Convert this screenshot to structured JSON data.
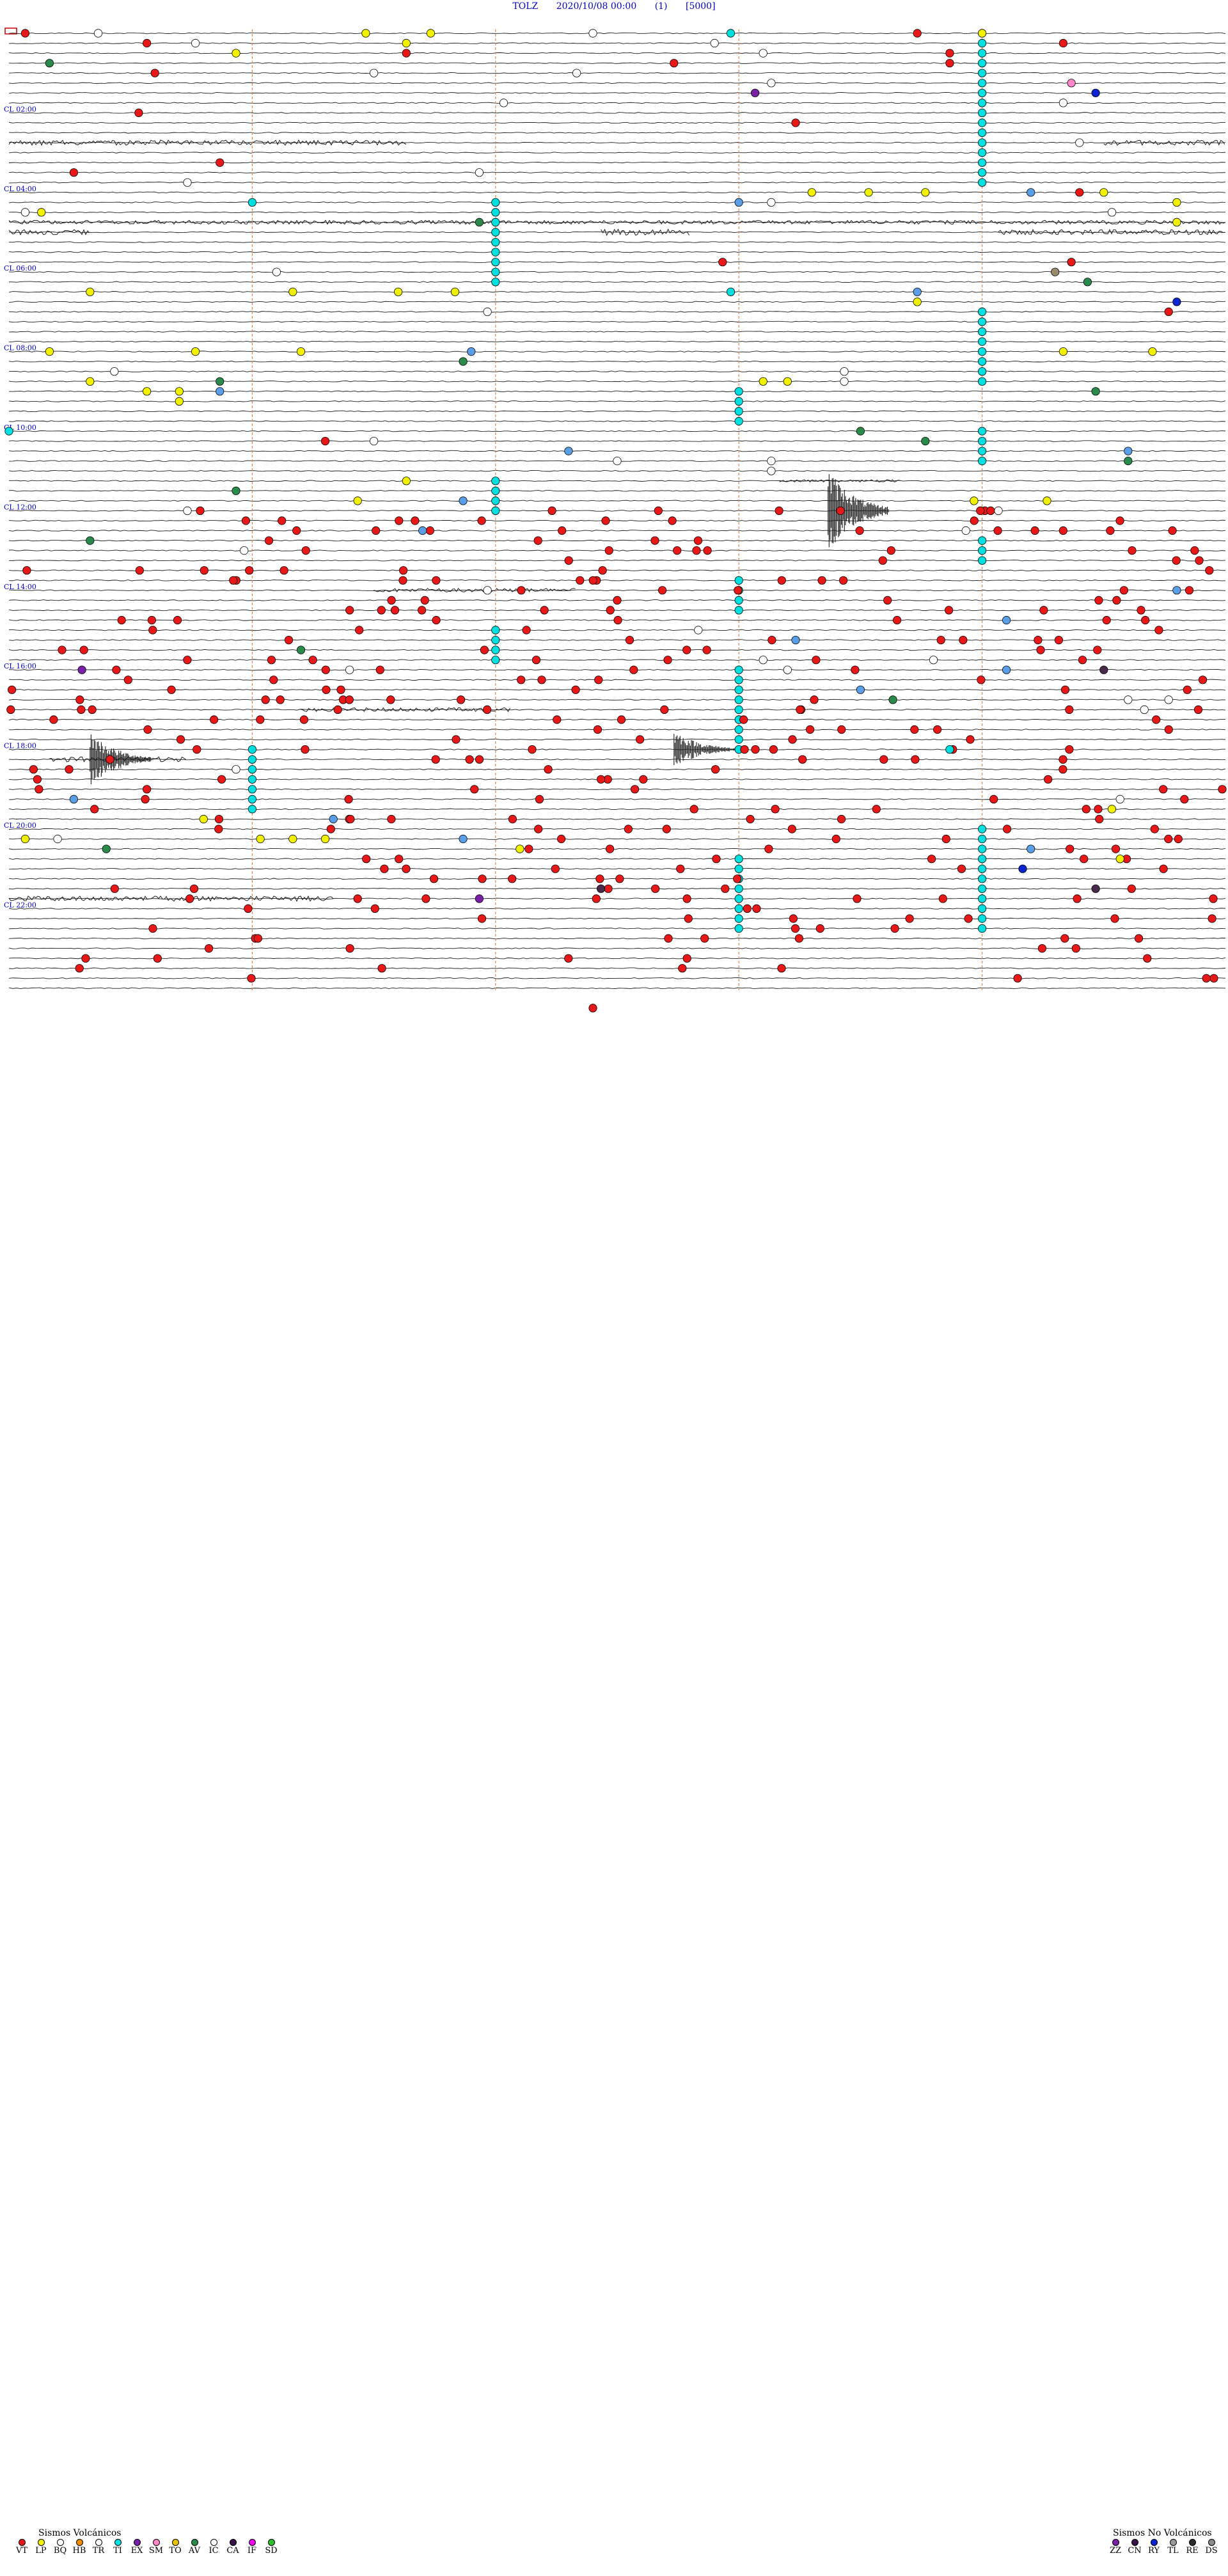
{
  "header": {
    "station": "TOLZ",
    "datetime": "2020/10/08 00:00",
    "channel": "(1)",
    "gain": "[5000]"
  },
  "chart_data": {
    "type": "scatter",
    "title": "TOLZ  2020/10/08 00:00  (1)  [5000]",
    "rows_per_hour": 4,
    "hours_shown": 24,
    "hour_labels": [
      "02:00",
      "04:00",
      "06:00",
      "08:00",
      "10:00",
      "12:00",
      "14:00",
      "16:00",
      "18:00",
      "20:00",
      "22:00"
    ],
    "hour_label_prefix": "CL",
    "x_minutes_per_row": 15,
    "vertical_markers_minutes": [
      3.0,
      6.0,
      9.0,
      12.0
    ],
    "noise_segments": [
      {
        "hour": 2.75,
        "from": 0.0,
        "to": 4.9,
        "amp": 4
      },
      {
        "hour": 2.75,
        "from": 13.5,
        "to": 15.0,
        "amp": 4
      },
      {
        "hour": 4.75,
        "from": 0.0,
        "to": 15.0,
        "amp": 3
      },
      {
        "hour": 5.0,
        "from": 0.0,
        "to": 1.0,
        "amp": 4
      },
      {
        "hour": 5.0,
        "from": 7.3,
        "to": 8.4,
        "amp": 5
      },
      {
        "hour": 5.0,
        "from": 12.2,
        "to": 15.0,
        "amp": 4
      },
      {
        "hour": 11.25,
        "from": 9.5,
        "to": 11.0,
        "amp": 2
      },
      {
        "hour": 14.0,
        "from": 4.5,
        "to": 7.0,
        "amp": 3
      },
      {
        "hour": 17.0,
        "from": 3.6,
        "to": 6.2,
        "amp": 3
      },
      {
        "hour": 18.25,
        "from": 0.5,
        "to": 2.2,
        "amp": 4
      },
      {
        "hour": 21.75,
        "from": 0.0,
        "to": 4.0,
        "amp": 4
      }
    ],
    "large_events": [
      {
        "hour": 12.0,
        "minute": 10.1,
        "amp": 45
      },
      {
        "hour": 18.25,
        "minute": 1.0,
        "amp": 30
      },
      {
        "hour": 18.0,
        "minute": 8.2,
        "amp": 20
      }
    ],
    "events": [
      {
        "hour": 0.0,
        "minute": 0.2,
        "type": "VT"
      },
      {
        "hour": 0.0,
        "minute": 1.1,
        "type": "IC"
      },
      {
        "hour": 0.0,
        "minute": 4.4,
        "type": "LP"
      },
      {
        "hour": 0.0,
        "minute": 5.2,
        "type": "LP"
      },
      {
        "hour": 0.0,
        "minute": 7.2,
        "type": "IC"
      },
      {
        "hour": 0.0,
        "minute": 8.9,
        "type": "TI"
      },
      {
        "hour": 0.0,
        "minute": 11.2,
        "type": "VT"
      },
      {
        "hour": 0.0,
        "minute": 12.0,
        "type": "LP"
      },
      {
        "hour": 0.25,
        "minute": 1.7,
        "type": "VT"
      },
      {
        "hour": 0.25,
        "minute": 2.3,
        "type": "IC"
      },
      {
        "hour": 0.25,
        "minute": 4.9,
        "type": "LP"
      },
      {
        "hour": 0.25,
        "minute": 8.7,
        "type": "IC"
      },
      {
        "hour": 0.25,
        "minute": 13.0,
        "type": "VT"
      },
      {
        "hour": 0.5,
        "minute": 2.8,
        "type": "LP"
      },
      {
        "hour": 0.5,
        "minute": 4.9,
        "type": "VT"
      },
      {
        "hour": 0.5,
        "minute": 9.3,
        "type": "IC"
      },
      {
        "hour": 0.5,
        "minute": 11.6,
        "type": "VT"
      },
      {
        "hour": 0.75,
        "minute": 0.5,
        "type": "AV"
      },
      {
        "hour": 0.75,
        "minute": 8.2,
        "type": "VT"
      },
      {
        "hour": 0.75,
        "minute": 11.6,
        "type": "VT"
      },
      {
        "hour": 1.0,
        "minute": 1.8,
        "type": "VT"
      },
      {
        "hour": 1.0,
        "minute": 4.5,
        "type": "IC"
      },
      {
        "hour": 1.0,
        "minute": 7.0,
        "type": "IC"
      },
      {
        "hour": 1.25,
        "minute": 9.4,
        "type": "IC"
      },
      {
        "hour": 1.25,
        "minute": 13.1,
        "type": "SM"
      },
      {
        "hour": 1.5,
        "minute": 9.2,
        "type": "EX"
      },
      {
        "hour": 1.5,
        "minute": 13.4,
        "type": "RY"
      },
      {
        "hour": 1.75,
        "minute": 6.1,
        "type": "IC"
      },
      {
        "hour": 1.75,
        "minute": 13.0,
        "type": "IC"
      },
      {
        "hour": 2.0,
        "minute": 1.6,
        "type": "VT"
      },
      {
        "hour": 2.25,
        "minute": 9.7,
        "type": "VT"
      },
      {
        "hour": 2.75,
        "minute": 13.2,
        "type": "IC"
      },
      {
        "hour": 3.25,
        "minute": 2.6,
        "type": "VT"
      },
      {
        "hour": 3.5,
        "minute": 0.8,
        "type": "VT"
      },
      {
        "hour": 3.5,
        "minute": 5.8,
        "type": "IC"
      },
      {
        "hour": 3.75,
        "minute": 2.2,
        "type": "IC"
      },
      {
        "hour": 4.0,
        "minute": 9.9,
        "type": "LP"
      },
      {
        "hour": 4.0,
        "minute": 10.6,
        "type": "LP"
      },
      {
        "hour": 4.0,
        "minute": 11.3,
        "type": "LP"
      },
      {
        "hour": 4.0,
        "minute": 12.6,
        "type": "HB"
      },
      {
        "hour": 4.0,
        "minute": 13.2,
        "type": "VT"
      },
      {
        "hour": 4.0,
        "minute": 13.5,
        "type": "LP"
      },
      {
        "hour": 4.25,
        "minute": 3.0,
        "type": "TI"
      },
      {
        "hour": 4.25,
        "minute": 9.0,
        "type": "HB"
      },
      {
        "hour": 4.25,
        "minute": 9.4,
        "type": "IC"
      },
      {
        "hour": 4.25,
        "minute": 14.4,
        "type": "LP"
      },
      {
        "hour": 4.5,
        "minute": 0.2,
        "type": "IC"
      },
      {
        "hour": 4.5,
        "minute": 0.4,
        "type": "LP"
      },
      {
        "hour": 4.5,
        "minute": 13.6,
        "type": "IC"
      },
      {
        "hour": 4.75,
        "minute": 5.8,
        "type": "AV"
      },
      {
        "hour": 4.75,
        "minute": 14.4,
        "type": "LP"
      },
      {
        "hour": 5.75,
        "minute": 8.8,
        "type": "VT"
      },
      {
        "hour": 5.75,
        "minute": 13.1,
        "type": "VT"
      },
      {
        "hour": 6.0,
        "minute": 3.3,
        "type": "IC"
      },
      {
        "hour": 6.0,
        "minute": 12.9,
        "type": "TO"
      },
      {
        "hour": 6.25,
        "minute": 13.3,
        "type": "AV"
      },
      {
        "hour": 6.5,
        "minute": 1.0,
        "type": "LP"
      },
      {
        "hour": 6.5,
        "minute": 3.5,
        "type": "LP"
      },
      {
        "hour": 6.5,
        "minute": 4.8,
        "type": "LP"
      },
      {
        "hour": 6.5,
        "minute": 5.5,
        "type": "LP"
      },
      {
        "hour": 6.5,
        "minute": 8.9,
        "type": "TI"
      },
      {
        "hour": 6.5,
        "minute": 11.2,
        "type": "HB"
      },
      {
        "hour": 6.75,
        "minute": 11.2,
        "type": "LP"
      },
      {
        "hour": 6.75,
        "minute": 14.4,
        "type": "RY"
      },
      {
        "hour": 7.0,
        "minute": 14.3,
        "type": "VT"
      },
      {
        "hour": 7.0,
        "minute": 5.9,
        "type": "IC"
      },
      {
        "hour": 8.0,
        "minute": 0.5,
        "type": "LP"
      },
      {
        "hour": 8.0,
        "minute": 2.3,
        "type": "LP"
      },
      {
        "hour": 8.0,
        "minute": 3.6,
        "type": "LP"
      },
      {
        "hour": 8.0,
        "minute": 5.7,
        "type": "HB"
      },
      {
        "hour": 8.0,
        "minute": 13.0,
        "type": "LP"
      },
      {
        "hour": 8.0,
        "minute": 14.1,
        "type": "LP"
      },
      {
        "hour": 8.25,
        "minute": 5.6,
        "type": "AV"
      },
      {
        "hour": 8.5,
        "minute": 1.3,
        "type": "IC"
      },
      {
        "hour": 8.5,
        "minute": 10.3,
        "type": "IC"
      },
      {
        "hour": 8.75,
        "minute": 1.0,
        "type": "LP"
      },
      {
        "hour": 8.75,
        "minute": 2.6,
        "type": "AV"
      },
      {
        "hour": 8.75,
        "minute": 9.3,
        "type": "LP"
      },
      {
        "hour": 8.75,
        "minute": 9.6,
        "type": "LP"
      },
      {
        "hour": 8.75,
        "minute": 10.3,
        "type": "IC"
      },
      {
        "hour": 9.0,
        "minute": 1.7,
        "type": "LP"
      },
      {
        "hour": 9.0,
        "minute": 2.1,
        "type": "LP"
      },
      {
        "hour": 9.0,
        "minute": 2.6,
        "type": "HB"
      },
      {
        "hour": 9.0,
        "minute": 13.4,
        "type": "AV"
      },
      {
        "hour": 9.25,
        "minute": 2.1,
        "type": "LP"
      },
      {
        "hour": 10.0,
        "minute": 0.0,
        "type": "TI"
      },
      {
        "hour": 10.0,
        "minute": 10.5,
        "type": "AV"
      },
      {
        "hour": 10.25,
        "minute": 3.9,
        "type": "VT"
      },
      {
        "hour": 10.25,
        "minute": 4.5,
        "type": "IC"
      },
      {
        "hour": 10.25,
        "minute": 11.3,
        "type": "AV"
      },
      {
        "hour": 10.5,
        "minute": 6.9,
        "type": "HB"
      },
      {
        "hour": 10.5,
        "minute": 13.8,
        "type": "HB"
      },
      {
        "hour": 10.75,
        "minute": 7.5,
        "type": "IC"
      },
      {
        "hour": 10.75,
        "minute": 9.4,
        "type": "IC"
      },
      {
        "hour": 10.75,
        "minute": 13.8,
        "type": "AV"
      },
      {
        "hour": 11.0,
        "minute": 9.4,
        "type": "IC"
      },
      {
        "hour": 11.25,
        "minute": 4.9,
        "type": "LP"
      },
      {
        "hour": 11.5,
        "minute": 2.8,
        "type": "AV"
      },
      {
        "hour": 11.75,
        "minute": 4.3,
        "type": "LP"
      },
      {
        "hour": 11.75,
        "minute": 5.6,
        "type": "HB"
      },
      {
        "hour": 11.75,
        "minute": 11.9,
        "type": "LP"
      },
      {
        "hour": 11.75,
        "minute": 12.8,
        "type": "LP"
      },
      {
        "hour": 12.0,
        "minute": 2.2,
        "type": "IC"
      },
      {
        "hour": 12.0,
        "minute": 12.2,
        "type": "IC"
      },
      {
        "hour": 12.5,
        "minute": 5.1,
        "type": "HB"
      },
      {
        "hour": 12.5,
        "minute": 11.8,
        "type": "IC"
      },
      {
        "hour": 12.75,
        "minute": 1.0,
        "type": "AV"
      },
      {
        "hour": 13.0,
        "minute": 2.9,
        "type": "IC"
      },
      {
        "hour": 14.0,
        "minute": 5.9,
        "type": "IC"
      },
      {
        "hour": 14.0,
        "minute": 14.4,
        "type": "HB"
      },
      {
        "hour": 14.75,
        "minute": 12.3,
        "type": "HB"
      },
      {
        "hour": 15.0,
        "minute": 8.5,
        "type": "IC"
      },
      {
        "hour": 15.25,
        "minute": 9.7,
        "type": "HB"
      },
      {
        "hour": 15.5,
        "minute": 3.6,
        "type": "AV"
      },
      {
        "hour": 15.75,
        "minute": 9.3,
        "type": "IC"
      },
      {
        "hour": 15.75,
        "minute": 11.4,
        "type": "IC"
      },
      {
        "hour": 16.0,
        "minute": 0.9,
        "type": "EX"
      },
      {
        "hour": 16.0,
        "minute": 4.2,
        "type": "IC"
      },
      {
        "hour": 16.0,
        "minute": 9.6,
        "type": "IC"
      },
      {
        "hour": 16.0,
        "minute": 12.3,
        "type": "HB"
      },
      {
        "hour": 16.0,
        "minute": 13.5,
        "type": "CA"
      },
      {
        "hour": 16.5,
        "minute": 10.5,
        "type": "HB"
      },
      {
        "hour": 16.75,
        "minute": 10.9,
        "type": "AV"
      },
      {
        "hour": 16.75,
        "minute": 13.8,
        "type": "IC"
      },
      {
        "hour": 16.75,
        "minute": 14.3,
        "type": "IC"
      },
      {
        "hour": 17.0,
        "minute": 14.0,
        "type": "IC"
      },
      {
        "hour": 18.0,
        "minute": 11.6,
        "type": "TI"
      },
      {
        "hour": 18.5,
        "minute": 2.8,
        "type": "IC"
      },
      {
        "hour": 19.25,
        "minute": 0.8,
        "type": "HB"
      },
      {
        "hour": 19.25,
        "minute": 13.7,
        "type": "IC"
      },
      {
        "hour": 19.5,
        "minute": 13.6,
        "type": "LP"
      },
      {
        "hour": 19.75,
        "minute": 2.4,
        "type": "LP"
      },
      {
        "hour": 19.75,
        "minute": 4.0,
        "type": "HB"
      },
      {
        "hour": 20.25,
        "minute": 0.2,
        "type": "LP"
      },
      {
        "hour": 20.25,
        "minute": 0.6,
        "type": "IC"
      },
      {
        "hour": 20.25,
        "minute": 3.1,
        "type": "LP"
      },
      {
        "hour": 20.25,
        "minute": 3.5,
        "type": "LP"
      },
      {
        "hour": 20.25,
        "minute": 3.9,
        "type": "LP"
      },
      {
        "hour": 20.25,
        "minute": 5.6,
        "type": "HB"
      },
      {
        "hour": 20.5,
        "minute": 6.3,
        "type": "LP"
      },
      {
        "hour": 20.5,
        "minute": 1.2,
        "type": "AV"
      },
      {
        "hour": 20.5,
        "minute": 12.6,
        "type": "HB"
      },
      {
        "hour": 20.75,
        "minute": 13.7,
        "type": "LP"
      },
      {
        "hour": 21.0,
        "minute": 12.5,
        "type": "RY"
      },
      {
        "hour": 21.5,
        "minute": 7.3,
        "type": "CA"
      },
      {
        "hour": 21.5,
        "minute": 13.4,
        "type": "CA"
      },
      {
        "hour": 21.75,
        "minute": 5.8,
        "type": "EX"
      },
      {
        "hour": 24.5,
        "minute": 7.2,
        "type": "VT"
      }
    ],
    "long_event_columns": [
      {
        "hour_start": 0.0,
        "hour_end": 3.75,
        "minute": 12.0,
        "type": "TI"
      },
      {
        "hour_start": 4.25,
        "hour_end": 6.25,
        "minute": 6.0,
        "type": "TI"
      },
      {
        "hour_start": 7.0,
        "hour_end": 8.75,
        "minute": 12.0,
        "type": "TI"
      },
      {
        "hour_start": 9.0,
        "hour_end": 9.75,
        "minute": 9.0,
        "type": "TI"
      },
      {
        "hour_start": 10.0,
        "hour_end": 10.75,
        "minute": 12.0,
        "type": "TI"
      },
      {
        "hour_start": 11.25,
        "hour_end": 12.0,
        "minute": 6.0,
        "type": "TI"
      },
      {
        "hour_start": 12.75,
        "hour_end": 13.25,
        "minute": 12.0,
        "type": "TI"
      },
      {
        "hour_start": 13.75,
        "hour_end": 14.5,
        "minute": 9.0,
        "type": "TI"
      },
      {
        "hour_start": 15.0,
        "hour_end": 15.75,
        "minute": 6.0,
        "type": "TI"
      },
      {
        "hour_start": 16.0,
        "hour_end": 18.0,
        "minute": 9.0,
        "type": "TI"
      },
      {
        "hour_start": 18.0,
        "hour_end": 19.5,
        "minute": 3.0,
        "type": "TI"
      },
      {
        "hour_start": 20.0,
        "hour_end": 22.5,
        "minute": 12.0,
        "type": "TI"
      },
      {
        "hour_start": 20.75,
        "hour_end": 22.5,
        "minute": 9.0,
        "type": "TI"
      }
    ],
    "dense_vt_hours": [
      12.0,
      24.0
    ],
    "vt_density_per_row": 7
  },
  "legend_left": {
    "title": "Sismos Volcánicos",
    "items": [
      {
        "code": "VT",
        "color": "#e81818"
      },
      {
        "code": "LP",
        "color": "#f2f200"
      },
      {
        "code": "BQ",
        "color": "#ffffff"
      },
      {
        "code": "HB",
        "color": "#f08c00"
      },
      {
        "code": "TR",
        "color": "#ffffff"
      },
      {
        "code": "TI",
        "color": "#00e0e0"
      },
      {
        "code": "EX",
        "color": "#7a1fa8"
      },
      {
        "code": "SM",
        "color": "#ff88cc"
      },
      {
        "code": "TO",
        "color": "#e8c000"
      },
      {
        "code": "AV",
        "color": "#2a8a4a"
      },
      {
        "code": "IC",
        "color": "#ffffff"
      },
      {
        "code": "CA",
        "color": "#3a1048"
      },
      {
        "code": "IF",
        "color": "#ee00ee"
      },
      {
        "code": "SD",
        "color": "#30c030"
      }
    ]
  },
  "legend_right": {
    "title": "Sismos No Volcánicos",
    "items": [
      {
        "code": "ZZ",
        "color": "#7a1fa8"
      },
      {
        "code": "CN",
        "color": "#3a1048"
      },
      {
        "code": "RY",
        "color": "#0a24d0"
      },
      {
        "code": "TL",
        "color": "#9a9a9a"
      },
      {
        "code": "RE",
        "color": "#2a2a2a"
      },
      {
        "code": "DS",
        "color": "#8a8a8a"
      }
    ]
  },
  "colors": {
    "trace": "#1a1a1a",
    "marker_line": "#e0884a",
    "hour_label": "#0000cc",
    "HB": "#5a9ee8",
    "AV": "#2a8a4a",
    "IC": "#ffffff",
    "TO": "#9a8a6a",
    "CA": "#4a2a4a"
  }
}
